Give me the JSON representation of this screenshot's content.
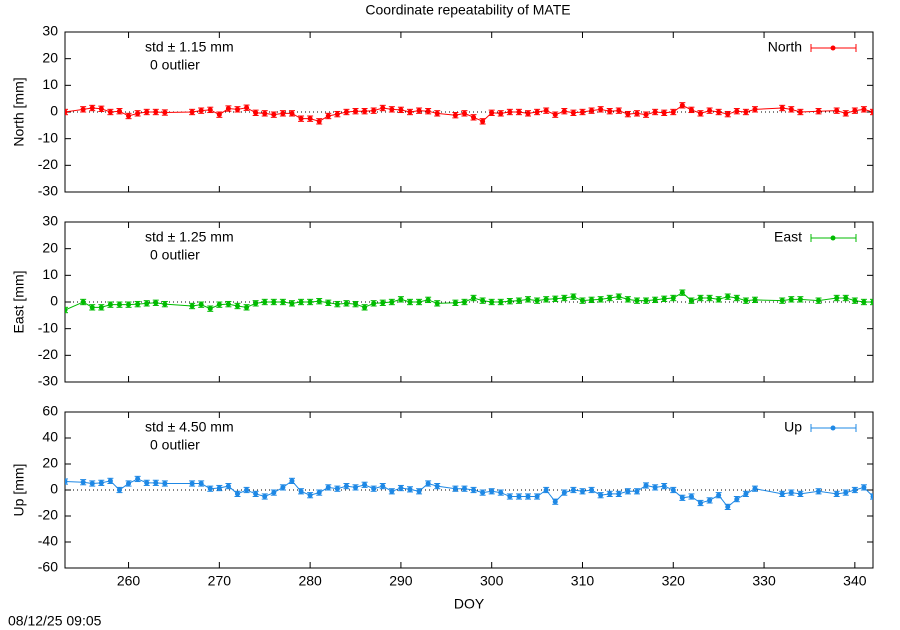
{
  "title": "Coordinate repeatability of MATE",
  "timestamp": "08/12/25 09:05",
  "chart_data": [
    {
      "type": "line",
      "ylabel": "North [mm]",
      "annotations": [
        "std ± 1.15 mm",
        "0 outlier"
      ],
      "xlim": [
        253,
        342
      ],
      "xticks": [
        260,
        270,
        280,
        290,
        300,
        310,
        320,
        330,
        340
      ],
      "ylim": [
        -30,
        30
      ],
      "yticks": [
        -30,
        -20,
        -10,
        0,
        10,
        20,
        30
      ],
      "x": [
        253,
        255,
        256,
        257,
        258,
        259,
        260,
        261,
        262,
        263,
        264,
        267,
        268,
        269,
        270,
        271,
        272,
        273,
        274,
        275,
        276,
        277,
        278,
        279,
        280,
        281,
        282,
        283,
        284,
        285,
        286,
        287,
        288,
        289,
        290,
        291,
        292,
        293,
        294,
        296,
        297,
        298,
        299,
        300,
        301,
        302,
        303,
        304,
        305,
        306,
        307,
        308,
        309,
        310,
        311,
        312,
        313,
        314,
        315,
        316,
        317,
        318,
        319,
        320,
        321,
        322,
        323,
        324,
        325,
        326,
        327,
        328,
        329,
        332,
        333,
        334,
        336,
        338,
        339,
        340,
        341,
        342
      ],
      "series": [
        {
          "name": "North",
          "color": "#ff0000",
          "error": 1,
          "values": [
            0,
            1,
            1.5,
            1.2,
            0,
            0.3,
            -1.5,
            -0.5,
            0,
            0,
            -0.2,
            0,
            0.5,
            0.8,
            -1,
            1.3,
            1,
            1.6,
            -0.3,
            -0.5,
            -1,
            -0.5,
            -0.5,
            -2.5,
            -2.5,
            -3.5,
            -1.5,
            -0.8,
            0,
            0.3,
            0.3,
            0.5,
            1.5,
            1,
            0.8,
            0,
            0.5,
            0.3,
            -0.5,
            -1.2,
            -0.5,
            -2,
            -3.5,
            -0.3,
            -0.5,
            0,
            0,
            -0.5,
            0,
            0.5,
            -1,
            0.3,
            -0.3,
            0,
            0.5,
            1,
            0.3,
            0.5,
            -0.8,
            -0.5,
            -1,
            0,
            -0.3,
            0,
            2.5,
            0.8,
            -0.5,
            0.5,
            0,
            -0.8,
            0.3,
            0,
            1,
            1.5,
            1,
            0,
            0.3,
            0.5,
            -0.5,
            0.5,
            1,
            0
          ]
        }
      ]
    },
    {
      "type": "line",
      "ylabel": "East [mm]",
      "annotations": [
        "std ± 1.25 mm",
        "0 outlier"
      ],
      "xlim": [
        253,
        342
      ],
      "xticks": [
        260,
        270,
        280,
        290,
        300,
        310,
        320,
        330,
        340
      ],
      "ylim": [
        -30,
        30
      ],
      "yticks": [
        -30,
        -20,
        -10,
        0,
        10,
        20,
        30
      ],
      "x": [
        253,
        255,
        256,
        257,
        258,
        259,
        260,
        261,
        262,
        263,
        264,
        267,
        268,
        269,
        270,
        271,
        272,
        273,
        274,
        275,
        276,
        277,
        278,
        279,
        280,
        281,
        282,
        283,
        284,
        285,
        286,
        287,
        288,
        289,
        290,
        291,
        292,
        293,
        294,
        296,
        297,
        298,
        299,
        300,
        301,
        302,
        303,
        304,
        305,
        306,
        307,
        308,
        309,
        310,
        311,
        312,
        313,
        314,
        315,
        316,
        317,
        318,
        319,
        320,
        321,
        322,
        323,
        324,
        325,
        326,
        327,
        328,
        329,
        332,
        333,
        334,
        336,
        338,
        339,
        340,
        341,
        342
      ],
      "series": [
        {
          "name": "East",
          "color": "#00bb00",
          "error": 1,
          "values": [
            -3,
            0,
            -2,
            -2,
            -1,
            -1,
            -1,
            -0.8,
            -0.5,
            -0.3,
            -0.8,
            -1.5,
            -1,
            -2.5,
            -1,
            -0.8,
            -1.5,
            -2,
            -0.5,
            0,
            0,
            0,
            -0.5,
            0,
            0,
            0.3,
            -0.3,
            -0.8,
            -0.5,
            -0.8,
            -2,
            -0.5,
            -0.3,
            0,
            1,
            0,
            0,
            0.8,
            -0.5,
            -0.3,
            0,
            1.5,
            0.5,
            0,
            0,
            0.3,
            0.5,
            1,
            0.5,
            1,
            1.2,
            1.5,
            2,
            0.5,
            0.8,
            1,
            1.5,
            2,
            1,
            0.5,
            0.5,
            0.8,
            1.2,
            1.5,
            3.5,
            0.5,
            1.5,
            1.5,
            1,
            2,
            1.5,
            0.5,
            0.8,
            0.5,
            1,
            1,
            0.5,
            1.5,
            1.5,
            0.5,
            0,
            0
          ]
        }
      ]
    },
    {
      "type": "line",
      "ylabel": "Up [mm]",
      "xlabel": "DOY",
      "annotations": [
        "std ± 4.50 mm",
        "0 outlier"
      ],
      "xlim": [
        253,
        342
      ],
      "xticks": [
        260,
        270,
        280,
        290,
        300,
        310,
        320,
        330,
        340
      ],
      "ylim": [
        -60,
        60
      ],
      "yticks": [
        -60,
        -40,
        -20,
        0,
        20,
        40,
        60
      ],
      "x": [
        253,
        255,
        256,
        257,
        258,
        259,
        260,
        261,
        262,
        263,
        264,
        267,
        268,
        269,
        270,
        271,
        272,
        273,
        274,
        275,
        276,
        277,
        278,
        279,
        280,
        281,
        282,
        283,
        284,
        285,
        286,
        287,
        288,
        289,
        290,
        291,
        292,
        293,
        294,
        296,
        297,
        298,
        299,
        300,
        301,
        302,
        303,
        304,
        305,
        306,
        307,
        308,
        309,
        310,
        311,
        312,
        313,
        314,
        315,
        316,
        317,
        318,
        319,
        320,
        321,
        322,
        323,
        324,
        325,
        326,
        327,
        328,
        329,
        332,
        333,
        334,
        336,
        338,
        339,
        340,
        341,
        342
      ],
      "series": [
        {
          "name": "Up",
          "color": "#1e88e5",
          "error": 2,
          "values": [
            6.5,
            6,
            5,
            5.5,
            7,
            0,
            5,
            8.5,
            5.5,
            5.5,
            5,
            5,
            5,
            1,
            1.5,
            3,
            -3,
            0,
            -3,
            -5,
            -2,
            2,
            7,
            -1,
            -4,
            -2,
            2,
            1,
            3,
            2,
            4,
            1,
            3,
            -1,
            1.5,
            0.5,
            -1,
            5,
            3,
            1,
            1,
            0,
            -2,
            -1,
            -2,
            -5,
            -5,
            -5,
            -5,
            0,
            -9,
            -2,
            0,
            -1,
            0,
            -4,
            -3,
            -3,
            -1,
            -1,
            3.5,
            2,
            3,
            0,
            -6,
            -5,
            -10,
            -8,
            -4,
            -13,
            -7,
            -3,
            1,
            -3,
            -2,
            -3,
            -1,
            -3,
            -2,
            0,
            2,
            -5
          ]
        }
      ]
    }
  ]
}
